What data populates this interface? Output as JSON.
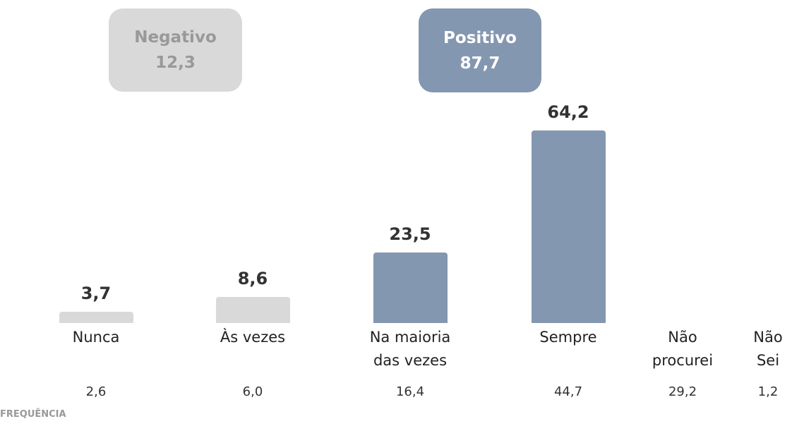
{
  "chart_data": {
    "type": "bar",
    "categories": [
      "Nunca",
      "Às vezes",
      "Na maioria das vezes",
      "Sempre",
      "Não procurei",
      "Não Sei"
    ],
    "values": [
      3.7,
      8.6,
      23.5,
      64.2,
      null,
      null
    ],
    "value_labels": [
      "3,7",
      "8,6",
      "23,5",
      "64,2",
      null,
      null
    ],
    "colors": [
      "#d9d9d9",
      "#d9d9d9",
      "#8497b0",
      "#8497b0",
      null,
      null
    ],
    "groups": [
      {
        "name": "Negativo",
        "value": 12.3,
        "value_label": "12,3",
        "color": "#d9d9d9"
      },
      {
        "name": "Positivo",
        "value": 87.7,
        "value_label": "87,7",
        "color": "#8497b0"
      }
    ],
    "frequency": {
      "label": "FREQUÊNCIA",
      "values": [
        2.6,
        6.0,
        16.4,
        44.7,
        29.2,
        1.2
      ],
      "value_labels": [
        "2,6",
        "6,0",
        "16,4",
        "44,7",
        "29,2",
        "1,2"
      ]
    }
  }
}
